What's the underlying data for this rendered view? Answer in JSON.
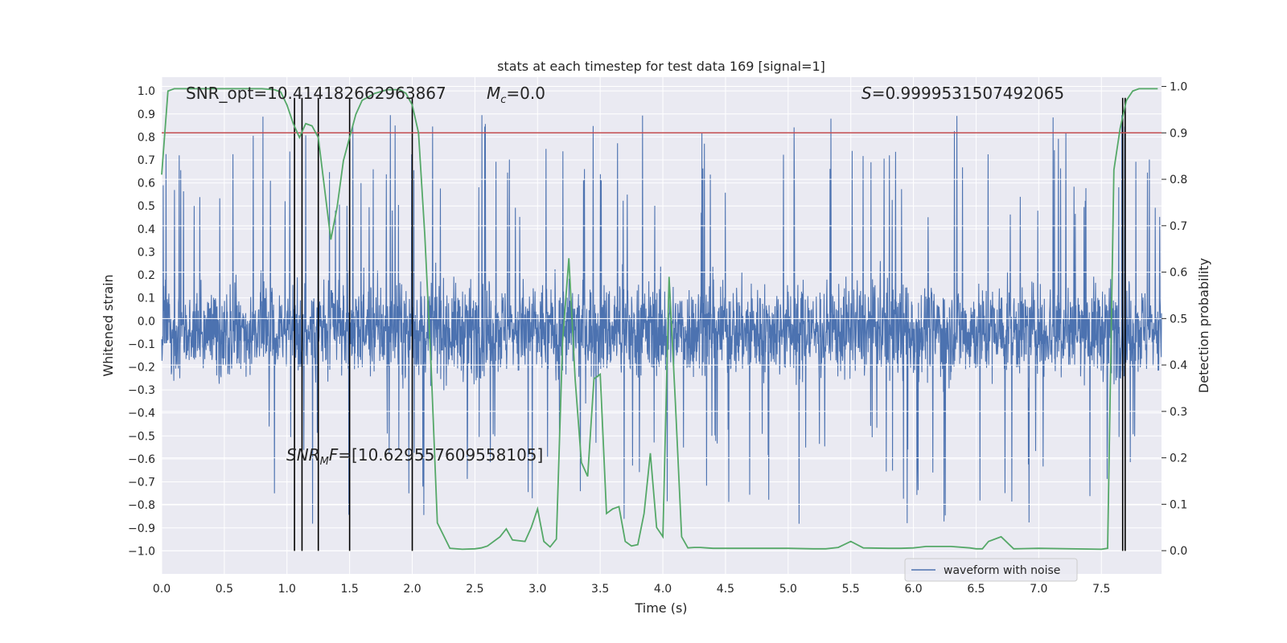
{
  "chart_data": {
    "type": "line",
    "title": "stats at each timestep for test data 169 [signal=1]",
    "xlabel": "Time (s)",
    "ylabel": "Whitened strain",
    "y2label": "Detection probability",
    "xlim": [
      0.0,
      7.98
    ],
    "ylim": [
      -1.1,
      1.06
    ],
    "y2lim": [
      -0.05,
      1.02
    ],
    "xticks": [
      "0.0",
      "0.5",
      "1.0",
      "1.5",
      "2.0",
      "2.5",
      "3.0",
      "3.5",
      "4.0",
      "4.5",
      "5.0",
      "5.5",
      "6.0",
      "6.5",
      "7.0",
      "7.5"
    ],
    "xtick_values": [
      0.0,
      0.5,
      1.0,
      1.5,
      2.0,
      2.5,
      3.0,
      3.5,
      4.0,
      4.5,
      5.0,
      5.5,
      6.0,
      6.5,
      7.0,
      7.5
    ],
    "yticks": [
      "−1.0",
      "−0.9",
      "−0.8",
      "−0.7",
      "−0.6",
      "−0.5",
      "−0.4",
      "−0.3",
      "−0.2",
      "−0.1",
      "0.0",
      "0.1",
      "0.2",
      "0.3",
      "0.4",
      "0.5",
      "0.6",
      "0.7",
      "0.8",
      "0.9",
      "1.0"
    ],
    "ytick_values": [
      -1.0,
      -0.9,
      -0.8,
      -0.7,
      -0.6,
      -0.5,
      -0.4,
      -0.3,
      -0.2,
      -0.1,
      0.0,
      0.1,
      0.2,
      0.3,
      0.4,
      0.5,
      0.6,
      0.7,
      0.8,
      0.9,
      1.0
    ],
    "y2ticks": [
      "0.0",
      "0.1",
      "0.2",
      "0.3",
      "0.4",
      "0.5",
      "0.6",
      "0.7",
      "0.8",
      "0.9",
      "1.0"
    ],
    "y2tick_values": [
      0.0,
      0.1,
      0.2,
      0.3,
      0.4,
      0.5,
      0.6,
      0.7,
      0.8,
      0.9,
      1.0
    ],
    "threshold": {
      "axis": "right",
      "value": 0.9
    },
    "vertical_lines": [
      1.06,
      1.12,
      1.25,
      1.5,
      2.0,
      7.67,
      7.69
    ],
    "vertical_line_range": [
      -1.0,
      0.97
    ],
    "annotations": {
      "snr_opt": "SNR_opt=10.414182662963867",
      "mc_label": "M",
      "mc_sub": "c",
      "mc_value": "=0.0",
      "s_label": "S",
      "s_value": "=0.9999531507492065",
      "snr_mf_label": "SNR",
      "snr_mf_sub": "M",
      "snr_mf_tail": "F",
      "snr_mf_value": "=[10.629557609558105]"
    },
    "series": [
      {
        "name": "waveform with noise",
        "axis": "left",
        "style": "noise-band",
        "color": "#4c72b0",
        "description": "whitened strain noise, band approx −0.45 to 0.35 with spikes to ±1.0"
      },
      {
        "name": "detection probability",
        "axis": "right",
        "color": "#55a868",
        "x": [
          0.0,
          0.05,
          0.1,
          0.2,
          0.3,
          0.4,
          0.5,
          0.6,
          0.7,
          0.8,
          0.9,
          0.95,
          1.0,
          1.05,
          1.1,
          1.15,
          1.2,
          1.25,
          1.3,
          1.35,
          1.4,
          1.45,
          1.5,
          1.55,
          1.6,
          1.7,
          1.8,
          1.9,
          1.95,
          2.0,
          2.05,
          2.1,
          2.15,
          2.2,
          2.3,
          2.4,
          2.5,
          2.55,
          2.6,
          2.7,
          2.75,
          2.8,
          2.9,
          2.95,
          3.0,
          3.05,
          3.1,
          3.15,
          3.2,
          3.25,
          3.3,
          3.35,
          3.4,
          3.45,
          3.5,
          3.55,
          3.6,
          3.65,
          3.7,
          3.75,
          3.8,
          3.85,
          3.9,
          3.95,
          4.0,
          4.05,
          4.1,
          4.15,
          4.2,
          4.25,
          4.3,
          4.35,
          4.4,
          4.5,
          4.6,
          4.8,
          5.0,
          5.2,
          5.3,
          5.4,
          5.5,
          5.6,
          5.8,
          5.9,
          6.0,
          6.1,
          6.3,
          6.45,
          6.5,
          6.55,
          6.6,
          6.7,
          6.8,
          7.0,
          7.5,
          7.55,
          7.6,
          7.65,
          7.7,
          7.75,
          7.8,
          7.9,
          7.95
        ],
        "values": [
          0.81,
          0.99,
          0.995,
          0.995,
          0.995,
          0.995,
          0.995,
          0.995,
          0.995,
          0.995,
          0.993,
          0.988,
          0.96,
          0.92,
          0.89,
          0.92,
          0.915,
          0.89,
          0.78,
          0.67,
          0.74,
          0.84,
          0.89,
          0.94,
          0.97,
          0.985,
          0.993,
          0.993,
          0.985,
          0.96,
          0.9,
          0.68,
          0.4,
          0.06,
          0.005,
          0.003,
          0.004,
          0.006,
          0.01,
          0.03,
          0.047,
          0.023,
          0.02,
          0.05,
          0.09,
          0.02,
          0.008,
          0.025,
          0.45,
          0.63,
          0.37,
          0.19,
          0.16,
          0.37,
          0.38,
          0.08,
          0.09,
          0.095,
          0.02,
          0.01,
          0.013,
          0.08,
          0.21,
          0.05,
          0.03,
          0.59,
          0.32,
          0.03,
          0.006,
          0.007,
          0.007,
          0.006,
          0.005,
          0.005,
          0.005,
          0.005,
          0.005,
          0.004,
          0.004,
          0.007,
          0.02,
          0.006,
          0.005,
          0.005,
          0.006,
          0.009,
          0.009,
          0.006,
          0.004,
          0.004,
          0.02,
          0.03,
          0.004,
          0.005,
          0.003,
          0.005,
          0.82,
          0.91,
          0.97,
          0.99,
          0.995,
          0.995,
          0.995
        ]
      }
    ],
    "threshold_color": "#c44e52",
    "legend": {
      "label": "waveform with noise",
      "placement": "lower-right"
    }
  }
}
